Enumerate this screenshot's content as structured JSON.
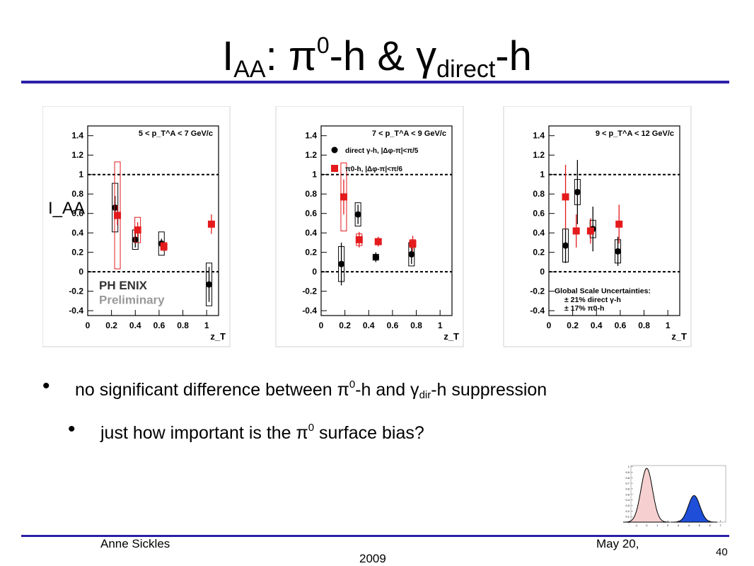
{
  "slide": {
    "title": {
      "main": "I",
      "sub": "AA",
      "mid": ": π",
      "sup": "0",
      "mid2": "-h & γ",
      "sub2": "direct",
      "end": "-h"
    },
    "bullet1": {
      "a": "no significant difference between π",
      "sup": "0",
      "b": "-h and γ",
      "sub": "dir",
      "c": "-h suppression"
    },
    "bullet2": {
      "a": "just how important is the π",
      "sup": "0",
      "b": " surface bias?"
    },
    "footer": {
      "author": "Anne Sickles",
      "date_line1": "May 20,",
      "date_line2": "2009",
      "page": "40"
    }
  },
  "colors": {
    "accent_rule": "#2a1fa8",
    "pi0_series": "#e41a1c",
    "gamma_series": "#000000",
    "inset_fill_right": "#1f4fd8",
    "inset_fill_left": "#f6d0d0"
  },
  "chart_data": [
    {
      "type": "scatter",
      "panel_label": "5 < p_T^A < 7 GeV/c",
      "ylabel": "I_AA",
      "xlabel": "z_T",
      "xlim": [
        0,
        1.1
      ],
      "ylim": [
        -0.45,
        1.5
      ],
      "xticks": [
        "0",
        "0.2",
        "0.4",
        "0.6",
        "0.8",
        "1"
      ],
      "yticks": [
        "-0.4",
        "-0.2",
        "0",
        "0.2",
        "0.4",
        "0.6",
        "0.8",
        "1",
        "1.2",
        "1.4"
      ],
      "reference_lines": [
        0,
        1
      ],
      "logo": {
        "name": "PH ENIX",
        "tag": "Preliminary"
      },
      "series": [
        {
          "name": "direct γ-h",
          "marker": "circle",
          "points": [
            {
              "x": 0.23,
              "y": 0.66,
              "err": 0.12,
              "sys": 0.25
            },
            {
              "x": 0.4,
              "y": 0.33,
              "err": 0.08,
              "sys": 0.1
            },
            {
              "x": 0.62,
              "y": 0.29,
              "err": 0.05,
              "sys": 0.12
            },
            {
              "x": 1.02,
              "y": -0.13,
              "err": 0.18,
              "sys": 0.22
            }
          ]
        },
        {
          "name": "π0-h",
          "marker": "square",
          "points": [
            {
              "x": 0.25,
              "y": 0.58,
              "err": 0.1,
              "sys": 0.55
            },
            {
              "x": 0.42,
              "y": 0.43,
              "err": 0.08,
              "sys": 0.13
            },
            {
              "x": 0.64,
              "y": 0.26,
              "err": 0.04,
              "sys": 0.04
            },
            {
              "x": 1.04,
              "y": 0.49,
              "err": 0.1,
              "sys": 0.0
            }
          ]
        }
      ]
    },
    {
      "type": "scatter",
      "panel_label": "7 < p_T^A < 9 GeV/c",
      "xlabel": "z_T",
      "xlim": [
        0,
        1.1
      ],
      "ylim": [
        -0.45,
        1.5
      ],
      "xticks": [
        "0",
        "0.2",
        "0.4",
        "0.6",
        "0.8",
        "1"
      ],
      "yticks": [
        "-0.4",
        "-0.2",
        "0",
        "0.2",
        "0.4",
        "0.6",
        "0.8",
        "1",
        "1.2",
        "1.4"
      ],
      "reference_lines": [
        0,
        1
      ],
      "legend": [
        {
          "marker": "circle",
          "label": "direct γ-h, |Δφ-π|<π/5"
        },
        {
          "marker": "square",
          "label": "π0-h, |Δφ-π|<π/6"
        }
      ],
      "series": [
        {
          "name": "direct γ-h",
          "marker": "circle",
          "points": [
            {
              "x": 0.17,
              "y": 0.08,
              "err": 0.22,
              "sys": 0.18
            },
            {
              "x": 0.31,
              "y": 0.59,
              "err": 0.1,
              "sys": 0.12
            },
            {
              "x": 0.46,
              "y": 0.15,
              "err": 0.05,
              "sys": 0.03
            },
            {
              "x": 0.76,
              "y": 0.18,
              "err": 0.1,
              "sys": 0.12
            }
          ]
        },
        {
          "name": "π0-h",
          "marker": "square",
          "points": [
            {
              "x": 0.19,
              "y": 0.77,
              "err": 0.18,
              "sys": 0.35
            },
            {
              "x": 0.32,
              "y": 0.33,
              "err": 0.08,
              "sys": 0.06
            },
            {
              "x": 0.48,
              "y": 0.31,
              "err": 0.05,
              "sys": 0.02
            },
            {
              "x": 0.77,
              "y": 0.29,
              "err": 0.08,
              "sys": 0.04
            }
          ]
        }
      ]
    },
    {
      "type": "scatter",
      "panel_label": "9 < p_T^A < 12 GeV/c",
      "xlabel": "z_T",
      "xlim": [
        0,
        1.1
      ],
      "ylim": [
        -0.45,
        1.5
      ],
      "xticks": [
        "0",
        "0.2",
        "0.4",
        "0.6",
        "0.8",
        "1"
      ],
      "yticks": [
        "-0.4",
        "-0.2",
        "0",
        "0.2",
        "0.4",
        "0.6",
        "0.8",
        "1",
        "1.2",
        "1.4"
      ],
      "reference_lines": [
        0,
        1
      ],
      "annotation": {
        "heading": "Global Scale Uncertainties:",
        "line1": "± 21% direct γ-h",
        "line2": "± 17% π0-h"
      },
      "series": [
        {
          "name": "direct γ-h",
          "marker": "circle",
          "points": [
            {
              "x": 0.14,
              "y": 0.27,
              "err": 0.18,
              "sys": 0.17
            },
            {
              "x": 0.24,
              "y": 0.82,
              "err": 0.33,
              "sys": 0.13
            },
            {
              "x": 0.37,
              "y": 0.44,
              "err": 0.23,
              "sys": 0.09
            },
            {
              "x": 0.58,
              "y": 0.21,
              "err": 0.15,
              "sys": 0.12
            }
          ]
        },
        {
          "name": "π0-h",
          "marker": "square",
          "points": [
            {
              "x": 0.14,
              "y": 0.77,
              "err": 0.33,
              "sys": 0.0
            },
            {
              "x": 0.23,
              "y": 0.42,
              "err": 0.17,
              "sys": 0.0
            },
            {
              "x": 0.35,
              "y": 0.42,
              "err": 0.13,
              "sys": 0.0
            },
            {
              "x": 0.59,
              "y": 0.49,
              "err": 0.2,
              "sys": 0.0
            }
          ]
        }
      ]
    },
    {
      "type": "area",
      "role": "inset",
      "yticks": [
        "0",
        "0.1",
        "0.2",
        "0.3",
        "0.4",
        "0.5",
        "0.6",
        "0.7",
        "0.8",
        "0.9",
        "1"
      ],
      "xticks": [
        "-1",
        "0",
        "1",
        "2",
        "3",
        "4",
        "5",
        "6",
        "7"
      ],
      "series": [
        {
          "shape": "gaussian",
          "mean": 0.0,
          "sigma": 0.55,
          "peak": 0.97,
          "fill": "left"
        },
        {
          "shape": "gaussian",
          "mean": 4.5,
          "sigma": 0.55,
          "peak": 0.48,
          "fill": "right"
        }
      ],
      "xlim": [
        -1.5,
        7.5
      ],
      "ylim": [
        0,
        1.02
      ]
    }
  ]
}
